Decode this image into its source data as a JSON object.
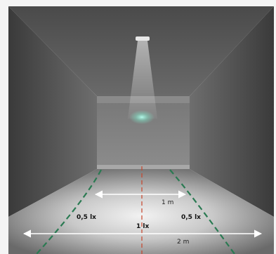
{
  "labels": {
    "one_meter": "1 m",
    "two_meter": "2 m",
    "left_lux": "0,5 lx",
    "center_lux": "1 lx",
    "right_lux": "0,5 lx"
  },
  "colors": {
    "centerline": "#c8442a",
    "isolux": "#2a7a52",
    "arrow": "#ffffff",
    "glow": "#7fe6c8"
  }
}
